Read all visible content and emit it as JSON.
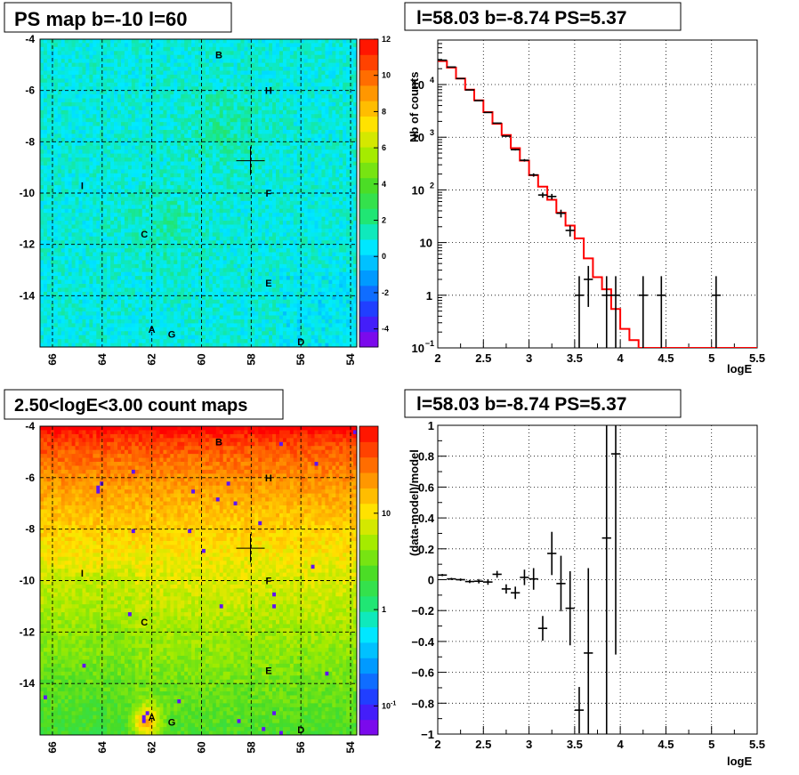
{
  "chart_data": [
    {
      "type": "heatmap",
      "title": "PS map b=-10 l=60",
      "x_ticks": [
        "66",
        "64",
        "62",
        "60",
        "58",
        "56",
        "54"
      ],
      "y_ticks": [
        "-4",
        "-6",
        "-8",
        "-10",
        "-12",
        "-14"
      ],
      "xlim": [
        66.5,
        53.75
      ],
      "ylim": [
        -16,
        -4
      ],
      "colorbar": {
        "min": -5,
        "max": 12,
        "ticks": [
          "12",
          "10",
          "8",
          "6",
          "4",
          "2",
          "0",
          "-2",
          "-4"
        ]
      },
      "colormap": "rainbow",
      "grid": true,
      "marker": {
        "l": 58.03,
        "b": -8.74
      },
      "sources": [
        {
          "label": "B",
          "l": 59.3,
          "b": -4.6
        },
        {
          "label": "H",
          "l": 57.3,
          "b": -6.0
        },
        {
          "label": "I",
          "l": 64.8,
          "b": -9.7
        },
        {
          "label": "F",
          "l": 57.3,
          "b": -10.0
        },
        {
          "label": "C",
          "l": 62.3,
          "b": -11.6
        },
        {
          "label": "E",
          "l": 57.3,
          "b": -13.5
        },
        {
          "label": "A",
          "l": 62.0,
          "b": -15.3
        },
        {
          "label": "G",
          "l": 61.2,
          "b": -15.5
        },
        {
          "label": "D",
          "l": 56.0,
          "b": -15.8
        }
      ]
    },
    {
      "type": "line",
      "title": "l=58.03 b=-8.74 PS=5.37",
      "xlabel": "logE",
      "ylabel": "Nb of counts",
      "xlim": [
        2,
        5.5
      ],
      "ylim": [
        0.1,
        70000
      ],
      "yscale": "log",
      "grid": true,
      "x_ticks": [
        "2",
        "2.5",
        "3",
        "3.5",
        "4",
        "4.5",
        "5",
        "5.5"
      ],
      "y_ticks": [
        {
          "base": "10",
          "exp": "4",
          "v": 10000
        },
        {
          "base": "10",
          "exp": "3",
          "v": 1000
        },
        {
          "base": "10",
          "exp": "2",
          "v": 100
        },
        {
          "base": "10",
          "exp": "",
          "v": 10
        },
        {
          "base": "1",
          "exp": "",
          "v": 1
        },
        {
          "base": "10",
          "exp": "−1",
          "v": 0.1
        }
      ],
      "model_color": "#ff0000",
      "bin_width": 0.1,
      "model_steps": [
        {
          "x": 2.0,
          "y": 28000
        },
        {
          "x": 2.1,
          "y": 21000
        },
        {
          "x": 2.2,
          "y": 13000
        },
        {
          "x": 2.3,
          "y": 8000
        },
        {
          "x": 2.4,
          "y": 5000
        },
        {
          "x": 2.5,
          "y": 3000
        },
        {
          "x": 2.6,
          "y": 1800
        },
        {
          "x": 2.7,
          "y": 1100
        },
        {
          "x": 2.8,
          "y": 620
        },
        {
          "x": 2.9,
          "y": 360
        },
        {
          "x": 3.0,
          "y": 190
        },
        {
          "x": 3.1,
          "y": 115
        },
        {
          "x": 3.2,
          "y": 65
        },
        {
          "x": 3.3,
          "y": 37
        },
        {
          "x": 3.4,
          "y": 21
        },
        {
          "x": 3.5,
          "y": 12
        },
        {
          "x": 3.6,
          "y": 5
        },
        {
          "x": 3.7,
          "y": 2.2
        },
        {
          "x": 3.8,
          "y": 1.3
        },
        {
          "x": 3.9,
          "y": 0.55
        },
        {
          "x": 4.0,
          "y": 0.23
        },
        {
          "x": 4.1,
          "y": 0.14
        },
        {
          "x": 4.2,
          "y": 0.1
        },
        {
          "x": 5.5,
          "y": 0.1
        }
      ],
      "data_points": [
        {
          "x": 2.05,
          "y": 29000,
          "lo": 28800,
          "hi": 29200
        },
        {
          "x": 2.15,
          "y": 21500,
          "lo": 21300,
          "hi": 21700
        },
        {
          "x": 2.25,
          "y": 13000,
          "lo": 12900,
          "hi": 13100
        },
        {
          "x": 2.35,
          "y": 7900,
          "lo": 7800,
          "hi": 8000
        },
        {
          "x": 2.45,
          "y": 4950,
          "lo": 4880,
          "hi": 5020
        },
        {
          "x": 2.55,
          "y": 2950,
          "lo": 2900,
          "hi": 3000
        },
        {
          "x": 2.65,
          "y": 1850,
          "lo": 1810,
          "hi": 1890
        },
        {
          "x": 2.75,
          "y": 1050,
          "lo": 1020,
          "hi": 1080
        },
        {
          "x": 2.85,
          "y": 580,
          "lo": 560,
          "hi": 600
        },
        {
          "x": 2.95,
          "y": 365,
          "lo": 345,
          "hi": 385
        },
        {
          "x": 3.05,
          "y": 192,
          "lo": 178,
          "hi": 206
        },
        {
          "x": 3.15,
          "y": 80,
          "lo": 71,
          "hi": 89
        },
        {
          "x": 3.25,
          "y": 75,
          "lo": 66,
          "hi": 84
        },
        {
          "x": 3.35,
          "y": 36,
          "lo": 30,
          "hi": 42
        },
        {
          "x": 3.45,
          "y": 17,
          "lo": 13,
          "hi": 21
        },
        {
          "x": 3.55,
          "y": 1,
          "lo": 0.1,
          "hi": 2.3
        },
        {
          "x": 3.65,
          "y": 2,
          "lo": 0.6,
          "hi": 3.6
        },
        {
          "x": 3.85,
          "y": 1,
          "lo": 0.1,
          "hi": 2.3
        },
        {
          "x": 3.95,
          "y": 1,
          "lo": 0.1,
          "hi": 2.3
        },
        {
          "x": 4.25,
          "y": 1,
          "lo": 0.1,
          "hi": 2.3
        },
        {
          "x": 4.45,
          "y": 1,
          "lo": 0.1,
          "hi": 2.3
        },
        {
          "x": 5.05,
          "y": 1,
          "lo": 0.1,
          "hi": 2.3
        }
      ]
    },
    {
      "type": "heatmap",
      "title": "2.50<logE<3.00 count maps",
      "x_ticks": [
        "66",
        "64",
        "62",
        "60",
        "58",
        "56",
        "54"
      ],
      "y_ticks": [
        "-4",
        "-6",
        "-8",
        "-10",
        "-12",
        "-14"
      ],
      "xlim": [
        66.5,
        53.75
      ],
      "ylim": [
        -16,
        -4
      ],
      "colorbar": {
        "scale": "log",
        "min": 0.05,
        "max": 80,
        "ticks": [
          {
            "label": "10",
            "v": 10
          },
          {
            "label": "1",
            "v": 1
          },
          {
            "label": "10",
            "exp": "-1",
            "v": 0.1
          }
        ]
      },
      "colormap": "rainbow",
      "grid": true,
      "marker": {
        "l": 58.03,
        "b": -8.74
      },
      "sources": [
        {
          "label": "B",
          "l": 59.3,
          "b": -4.6
        },
        {
          "label": "H",
          "l": 57.3,
          "b": -6.0
        },
        {
          "label": "I",
          "l": 64.8,
          "b": -9.7
        },
        {
          "label": "F",
          "l": 57.3,
          "b": -10.0
        },
        {
          "label": "C",
          "l": 62.3,
          "b": -11.6
        },
        {
          "label": "E",
          "l": 57.3,
          "b": -13.5
        },
        {
          "label": "A",
          "l": 62.0,
          "b": -15.3
        },
        {
          "label": "G",
          "l": 61.2,
          "b": -15.5
        },
        {
          "label": "D",
          "l": 56.0,
          "b": -15.8
        }
      ]
    },
    {
      "type": "scatter",
      "title": "l=58.03 b=-8.74 PS=5.37",
      "xlabel": "logE",
      "ylabel": "(data-model)/model",
      "xlim": [
        2,
        5.5
      ],
      "ylim": [
        -1,
        1
      ],
      "grid": true,
      "x_ticks": [
        "2",
        "2.5",
        "3",
        "3.5",
        "4",
        "4.5",
        "5",
        "5.5"
      ],
      "y_ticks": [
        "1",
        "0.8",
        "0.6",
        "0.4",
        "0.2",
        "0",
        "−0.2",
        "−0.4",
        "−0.6",
        "−0.8",
        "−1"
      ],
      "points": [
        {
          "x": 2.05,
          "y": 0.03,
          "err": 0.007
        },
        {
          "x": 2.15,
          "y": 0.005,
          "err": 0.007
        },
        {
          "x": 2.25,
          "y": 0.0,
          "err": 0.008
        },
        {
          "x": 2.35,
          "y": -0.012,
          "err": 0.01
        },
        {
          "x": 2.45,
          "y": -0.01,
          "err": 0.014
        },
        {
          "x": 2.55,
          "y": -0.015,
          "err": 0.018
        },
        {
          "x": 2.65,
          "y": 0.035,
          "err": 0.022
        },
        {
          "x": 2.75,
          "y": -0.06,
          "err": 0.03
        },
        {
          "x": 2.85,
          "y": -0.085,
          "err": 0.04
        },
        {
          "x": 2.95,
          "y": 0.015,
          "err": 0.05
        },
        {
          "x": 3.05,
          "y": 0.005,
          "err": 0.07
        },
        {
          "x": 3.15,
          "y": -0.315,
          "err": 0.08
        },
        {
          "x": 3.25,
          "y": 0.17,
          "err": 0.14
        },
        {
          "x": 3.35,
          "y": -0.025,
          "err": 0.18
        },
        {
          "x": 3.45,
          "y": -0.185,
          "err": 0.24
        },
        {
          "x": 3.55,
          "y": -0.845,
          "err": 0.15
        },
        {
          "x": 3.65,
          "y": -0.475,
          "err": 0.55
        },
        {
          "x": 3.85,
          "y": 0.27,
          "err": 1.4
        },
        {
          "x": 3.95,
          "y": 0.815,
          "err": 1.3
        }
      ]
    }
  ]
}
